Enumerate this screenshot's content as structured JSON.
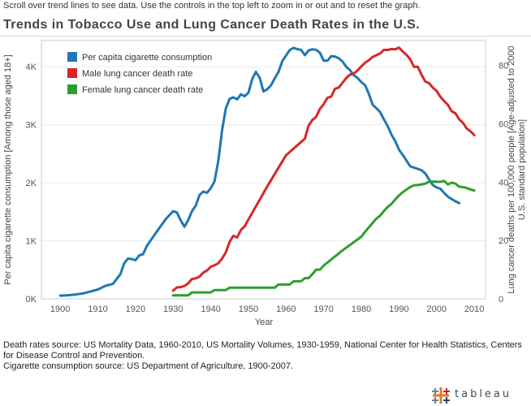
{
  "instructions": "Scroll over trend lines to see data. Use the controls in the top left to zoom in or out and to reset the graph.",
  "title": "Trends in Tobacco Use and Lung Cancer Death Rates in the U.S.",
  "sources": [
    "Death rates source: US Mortality Data, 1960-2010, US Mortality Volumes, 1930-1959, National Center for Health Statistics, Centers for Disease Control and Prevention.",
    "Cigarette consumption source: US Department of Agriculture, 1900-2007."
  ],
  "logo_text": "tableau",
  "colors": {
    "cigarettes": "#1f77b4",
    "male": "#d62728",
    "female": "#2ca02c"
  },
  "chart_data": {
    "type": "line",
    "title": "Trends in Tobacco Use and Lung Cancer Death Rates in the U.S.",
    "xlabel": "Year",
    "xlim": [
      1895,
      2013
    ],
    "x_ticks": [
      1900,
      1910,
      1920,
      1930,
      1940,
      1950,
      1960,
      1970,
      1980,
      1990,
      2000,
      2010
    ],
    "y_left": {
      "label": "Per capita cigarette consumption [Among those aged 18+]",
      "lim": [
        0,
        4450
      ],
      "ticks": [
        0,
        1000,
        2000,
        3000,
        4000
      ],
      "tick_labels": [
        "0K",
        "1K",
        "2K",
        "3K",
        "4K"
      ]
    },
    "y_right": {
      "label_lines": [
        "Lung cancer deaths per 100,000 people [Age-adjusted to 2000",
        "U.S. standard population]"
      ],
      "lim": [
        0,
        88.5
      ],
      "ticks": [
        0,
        20,
        40,
        60,
        80
      ],
      "tick_labels": [
        "0",
        "20",
        "40",
        "60",
        "80"
      ]
    },
    "legend_position": "top-left",
    "series": [
      {
        "name": "Per capita cigarette consumption",
        "axis": "left",
        "color": "#1f77b4",
        "x": [
          1900,
          1902,
          1904,
          1906,
          1908,
          1910,
          1912,
          1914,
          1916,
          1917,
          1918,
          1919,
          1920,
          1921,
          1922,
          1923,
          1924,
          1926,
          1928,
          1930,
          1931,
          1932,
          1933,
          1934,
          1935,
          1936,
          1937,
          1938,
          1939,
          1940,
          1941,
          1942,
          1943,
          1944,
          1945,
          1946,
          1947,
          1948,
          1949,
          1950,
          1951,
          1952,
          1953,
          1954,
          1955,
          1956,
          1957,
          1958,
          1959,
          1960,
          1961,
          1962,
          1963,
          1964,
          1965,
          1966,
          1967,
          1968,
          1969,
          1970,
          1971,
          1972,
          1973,
          1974,
          1975,
          1976,
          1977,
          1978,
          1979,
          1980,
          1981,
          1982,
          1983,
          1984,
          1985,
          1986,
          1987,
          1988,
          1989,
          1990,
          1991,
          1992,
          1993,
          1994,
          1995,
          1996,
          1997,
          1998,
          1999,
          2000,
          2001,
          2002,
          2003,
          2004,
          2005,
          2006
        ],
        "y": [
          54,
          61,
          74,
          92,
          124,
          161,
          223,
          258,
          426,
          615,
          692,
          686,
          665,
          748,
          768,
          910,
          1004,
          1190,
          1371,
          1510,
          1488,
          1353,
          1243,
          1357,
          1508,
          1606,
          1789,
          1847,
          1827,
          1908,
          2024,
          2381,
          2903,
          3280,
          3447,
          3472,
          3438,
          3525,
          3492,
          3551,
          3786,
          3911,
          3808,
          3574,
          3612,
          3679,
          3800,
          3908,
          4097,
          4194,
          4287,
          4325,
          4303,
          4289,
          4200,
          4280,
          4300,
          4290,
          4243,
          4103,
          4103,
          4183,
          4176,
          4146,
          4090,
          3997,
          3941,
          3852,
          3806,
          3735,
          3681,
          3532,
          3345,
          3285,
          3219,
          3094,
          2975,
          2831,
          2721,
          2570,
          2481,
          2380,
          2283,
          2261,
          2239,
          2215,
          2161,
          2056,
          1960,
          1920,
          1897,
          1823,
          1762,
          1720,
          1680,
          1650
        ]
      },
      {
        "name": "Male lung cancer death rate",
        "axis": "right",
        "color": "#d62728",
        "x": [
          1930,
          1931,
          1932,
          1933,
          1934,
          1935,
          1936,
          1937,
          1938,
          1939,
          1940,
          1941,
          1942,
          1943,
          1944,
          1945,
          1946,
          1947,
          1948,
          1949,
          1950,
          1955,
          1960,
          1965,
          1966,
          1967,
          1968,
          1969,
          1970,
          1971,
          1972,
          1973,
          1974,
          1975,
          1976,
          1977,
          1978,
          1979,
          1980,
          1981,
          1982,
          1983,
          1984,
          1985,
          1986,
          1987,
          1988,
          1989,
          1990,
          1991,
          1992,
          1993,
          1994,
          1995,
          1996,
          1997,
          1998,
          1999,
          2000,
          2001,
          2002,
          2003,
          2004,
          2005,
          2006,
          2007,
          2008,
          2009,
          2010
        ],
        "y": [
          2.8,
          3.9,
          4,
          4.4,
          5.3,
          6.8,
          7,
          7.6,
          9,
          9.7,
          11,
          11.5,
          12.2,
          13.8,
          15.9,
          19.5,
          21.6,
          21,
          23.6,
          24.8,
          27.2,
          38.5,
          49.2,
          54.9,
          59.4,
          61.3,
          62.4,
          65.1,
          66.7,
          68.9,
          69.3,
          72,
          72.4,
          74,
          75.7,
          76.8,
          77.2,
          78.3,
          79.7,
          80.9,
          81.8,
          82.9,
          83.5,
          84.1,
          85.3,
          85.3,
          85.6,
          85.5,
          86.1,
          84.8,
          83.6,
          82.1,
          79.5,
          79.5,
          76.8,
          74.5,
          73.9,
          72.4,
          71.3,
          69.2,
          67.8,
          66.5,
          64.3,
          63.6,
          61.5,
          60.3,
          58.4,
          57.4,
          56.1
        ]
      },
      {
        "name": "Female lung cancer death rate",
        "axis": "right",
        "color": "#2ca02c",
        "x": [
          1930,
          1931,
          1932,
          1933,
          1934,
          1935,
          1936,
          1937,
          1938,
          1939,
          1940,
          1941,
          1942,
          1943,
          1944,
          1945,
          1946,
          1950,
          1955,
          1957,
          1958,
          1959,
          1960,
          1961,
          1962,
          1963,
          1964,
          1965,
          1966,
          1967,
          1968,
          1969,
          1970,
          1975,
          1980,
          1981,
          1982,
          1983,
          1984,
          1985,
          1986,
          1987,
          1988,
          1989,
          1990,
          1991,
          1992,
          1993,
          1994,
          1995,
          1996,
          1997,
          1998,
          1999,
          2000,
          2001,
          2002,
          2003,
          2004,
          2005,
          2006,
          2007,
          2008,
          2009,
          2010
        ],
        "y": [
          1.2,
          1.2,
          1.2,
          1.2,
          1.2,
          2.2,
          2.2,
          2.2,
          2.2,
          2.2,
          2.2,
          3,
          3,
          3,
          3,
          3.8,
          3.8,
          3.8,
          3.8,
          3.8,
          4.9,
          4.9,
          4.9,
          4.9,
          6,
          6,
          6,
          7.1,
          7.1,
          8.5,
          10,
          10,
          11.4,
          16.6,
          21.3,
          23,
          24.5,
          26,
          27.5,
          28.5,
          30.1,
          31.5,
          32.5,
          34,
          35.4,
          36.5,
          37.5,
          38.3,
          38.9,
          39,
          39.2,
          39.5,
          40.1,
          40.2,
          40.1,
          40.1,
          40.4,
          39.2,
          39.8,
          39.5,
          38.4,
          38.3,
          38,
          37.5,
          37.1
        ]
      }
    ]
  }
}
